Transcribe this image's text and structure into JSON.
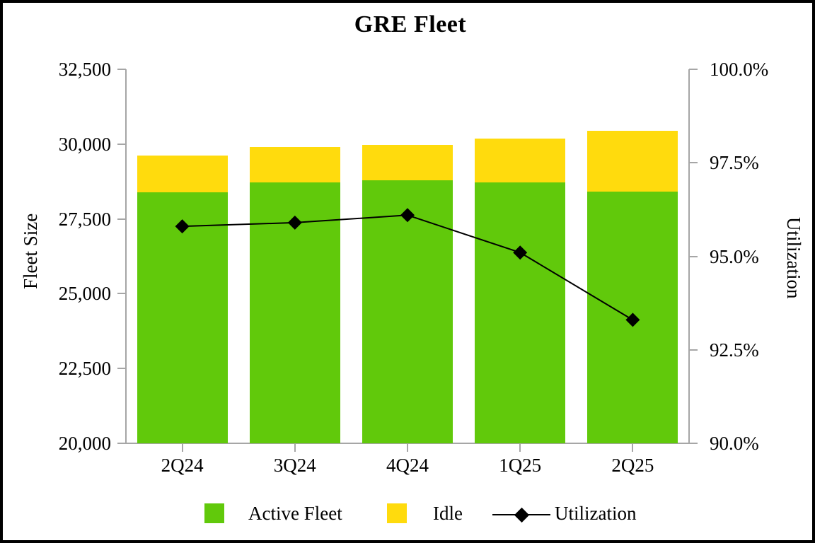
{
  "chart_data": {
    "type": "combo-stacked-bar-line",
    "title": "GRE Fleet",
    "categories": [
      "2Q24",
      "3Q24",
      "4Q24",
      "1Q25",
      "2Q25"
    ],
    "series": [
      {
        "name": "Active Fleet",
        "type": "bar",
        "stacked": true,
        "axis": "left",
        "color": "#61C90B",
        "values": [
          28390,
          28720,
          28800,
          28710,
          28420
        ]
      },
      {
        "name": "Idle",
        "type": "bar",
        "stacked": true,
        "axis": "left",
        "color": "#FFDB0D",
        "values": [
          1230,
          1180,
          1180,
          1470,
          2020
        ]
      },
      {
        "name": "Utilization",
        "type": "line",
        "axis": "right",
        "color": "#000000",
        "marker": "diamond",
        "values": [
          95.8,
          95.9,
          96.1,
          95.1,
          93.3
        ]
      }
    ],
    "stacked_totals": [
      29620,
      29900,
      29980,
      30180,
      30440
    ],
    "left_axis": {
      "label": "Fleet Size",
      "min": 20000,
      "max": 32500,
      "tick_values": [
        32500,
        30000,
        27500,
        25000,
        22500,
        20000
      ],
      "tick_labels": [
        "32,500",
        "30,000",
        "27,500",
        "25,000",
        "22,500",
        "20,000"
      ]
    },
    "right_axis": {
      "label": "Utilization",
      "min": 90,
      "max": 100,
      "tick_values": [
        100,
        97.5,
        95,
        92.5,
        90
      ],
      "tick_labels": [
        "100.0%",
        "97.5%",
        "95.0%",
        "92.5%",
        "90.0%"
      ]
    },
    "legend": {
      "position": "bottom",
      "items": [
        "Active Fleet",
        "Idle",
        "Utilization"
      ]
    },
    "grid": false,
    "axis_color": "#A6A6A6",
    "text_color": "#000000",
    "background_color": "#FFFFFF"
  }
}
